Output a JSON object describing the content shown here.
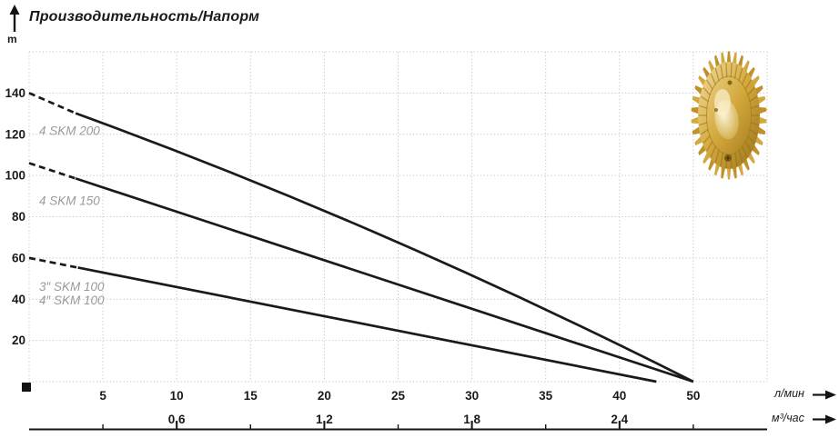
{
  "header": {
    "title": "Производительность/Напорм",
    "y_axis_unit": "m"
  },
  "axes": {
    "x_primary_unit": "л/мин",
    "x_secondary_unit": "м³/час"
  },
  "decorations": {
    "origin_marker": "black-square",
    "impeller": "brass-pump-impeller-photo"
  },
  "colors": {
    "curve": "#1a1a1a",
    "grid": "#c6c6c6",
    "series_label": "#9a9a9a",
    "text": "#1a1a1a",
    "axis_line": "#141414",
    "impeller_light": "#f2dd9e",
    "impeller_mid": "#d2a83c",
    "impeller_dark": "#9a7118"
  },
  "chart_data": {
    "type": "line",
    "title": "Производительность/Напорм",
    "ylabel": "m",
    "xlabel_primary": "л/мин",
    "xlabel_secondary": "м³/час",
    "ylim": [
      0,
      160
    ],
    "y_tick_step": 20,
    "y_tick_labels": [
      "20",
      "40",
      "60",
      "80",
      "100",
      "120",
      "140"
    ],
    "x_ticks_lmin": [
      {
        "value": 5,
        "label": "5"
      },
      {
        "value": 10,
        "label": "10"
      },
      {
        "value": 15,
        "label": "15"
      },
      {
        "value": 20,
        "label": "20"
      },
      {
        "value": 25,
        "label": "25"
      },
      {
        "value": 30,
        "label": "30"
      },
      {
        "value": 35,
        "label": "35"
      },
      {
        "value": 40,
        "label": "40"
      },
      {
        "value": 50,
        "label": "50"
      }
    ],
    "x_ticks_m3h": [
      {
        "value": 0.6,
        "label": "0,6"
      },
      {
        "value": 1.2,
        "label": "1,2"
      },
      {
        "value": 1.8,
        "label": "1,8"
      },
      {
        "value": 2.4,
        "label": "2,4"
      }
    ],
    "grid": true,
    "series": [
      {
        "name": "4 SKM 200",
        "labels": [
          "4 SKM 200"
        ],
        "points": [
          [
            0,
            140
          ],
          [
            50,
            0
          ]
        ],
        "dashed_until_x": 3.5
      },
      {
        "name": "4 SKM 150",
        "labels": [
          "4 SKM 150"
        ],
        "points": [
          [
            0,
            106
          ],
          [
            50,
            0
          ]
        ],
        "dashed_until_x": 3.5
      },
      {
        "name": "SKM 100",
        "labels": [
          "3″ SKM 100",
          "4″ SKM 100"
        ],
        "points": [
          [
            0,
            60
          ],
          [
            45,
            0
          ]
        ],
        "dashed_until_x": 3.5
      }
    ]
  }
}
